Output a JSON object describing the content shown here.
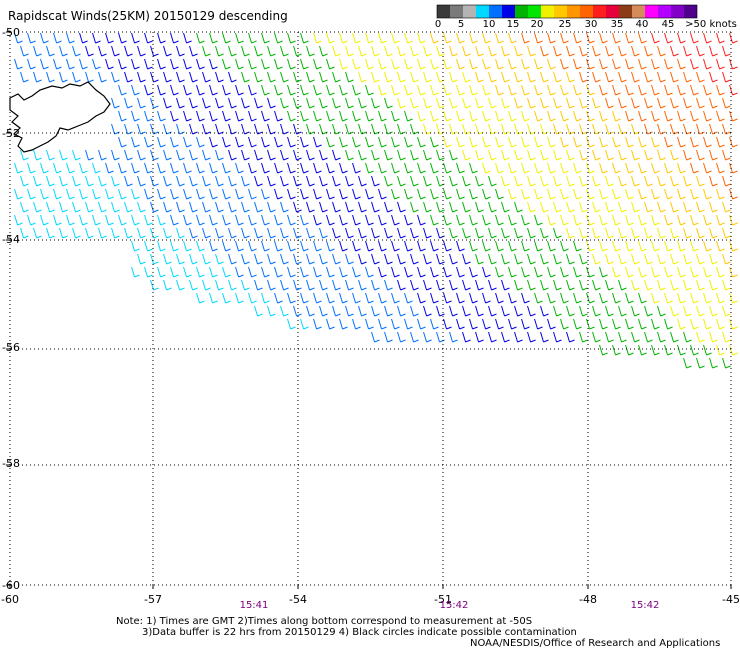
{
  "title": "Rapidscat Winds(25KM) 20150129 descending",
  "legend": {
    "bins": [
      {
        "color": "#3a3a3a"
      },
      {
        "color": "#7a7a7a"
      },
      {
        "color": "#b4b4b4"
      },
      {
        "color": "#00d8ff"
      },
      {
        "color": "#0070ff"
      },
      {
        "color": "#0000e6"
      },
      {
        "color": "#00b400"
      },
      {
        "color": "#00e600"
      },
      {
        "color": "#f0f000"
      },
      {
        "color": "#ffc800"
      },
      {
        "color": "#ff9600"
      },
      {
        "color": "#ff6400"
      },
      {
        "color": "#ff1e1e"
      },
      {
        "color": "#e6003c"
      },
      {
        "color": "#8c3c14"
      },
      {
        "color": "#d68c5a"
      },
      {
        "color": "#ff00ff"
      },
      {
        "color": "#b400ff"
      },
      {
        "color": "#8200c8"
      },
      {
        "color": "#50008c"
      }
    ],
    "labels": [
      "0",
      "5",
      "10",
      "15",
      "20",
      "25",
      "30",
      "35",
      "40",
      "45",
      ">50 knots"
    ]
  },
  "axes": {
    "x_labels": [
      "-60",
      "-57",
      "-54",
      "-51",
      "-48",
      "-45"
    ],
    "y_labels": [
      "-50",
      "-52",
      "-54",
      "-56",
      "-58",
      "-60"
    ]
  },
  "times": [
    "15:41",
    "15:42",
    "15:42"
  ],
  "notes": {
    "line1": "Note: 1) Times are GMT 2)Times along bottom correspond to measurement at -50S",
    "line2": "3)Data buffer is 22 hrs from 20150129 4) Black circles indicate possible contamination",
    "line3": "NOAA/NESDIS/Office of Research and Applications"
  },
  "colors": {
    "grid": "#000000",
    "coast": "#000000"
  }
}
